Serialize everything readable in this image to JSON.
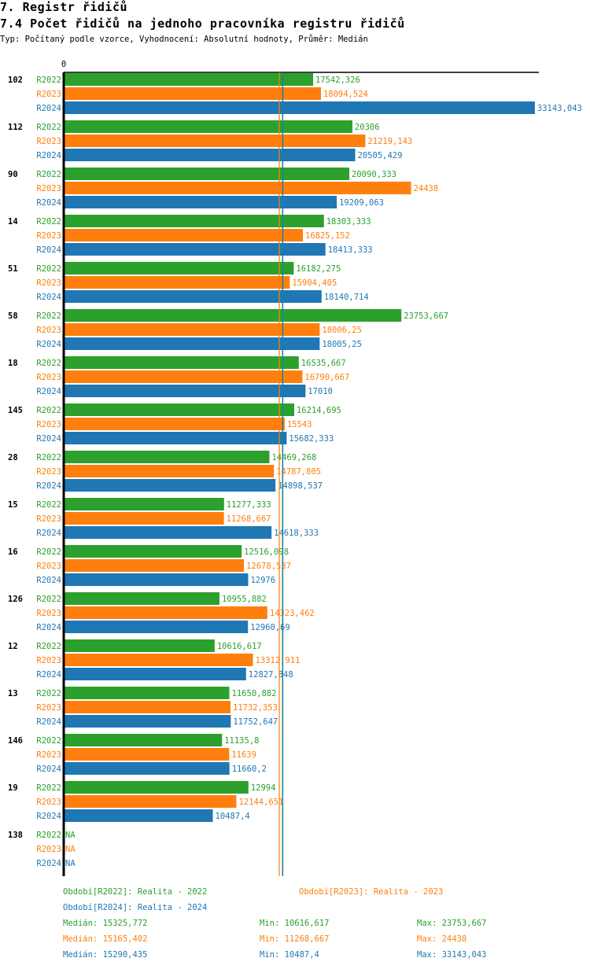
{
  "header": {
    "section": "7. Registr řidičů",
    "title": "7.4 Počet řidičů na jednoho pracovníka registru řidičů",
    "subtitle": "Typ: Počítaný podle vzorce, Vyhodnocení: Absolutní hodnoty, Průměr: Medián"
  },
  "chart_data": {
    "type": "bar",
    "orientation": "horizontal",
    "x_tick_labels": [
      "0"
    ],
    "colors": {
      "R2022": "#2ca02c",
      "R2023": "#ff7f0e",
      "R2024": "#1f77b4"
    },
    "categories": [
      "102",
      "112",
      "90",
      "14",
      "51",
      "58",
      "18",
      "145",
      "28",
      "15",
      "16",
      "126",
      "12",
      "13",
      "146",
      "19",
      "138"
    ],
    "series": [
      {
        "name": "R2022",
        "values": [
          17542.326,
          20306,
          20090.333,
          18303.333,
          16182.275,
          23753.667,
          16535.667,
          16214.695,
          14469.268,
          11277.333,
          12516.098,
          10955.882,
          10616.617,
          11650.882,
          11135.8,
          12994,
          null
        ],
        "labels": [
          "17542,326",
          "20306",
          "20090,333",
          "18303,333",
          "16182,275",
          "23753,667",
          "16535,667",
          "16214,695",
          "14469,268",
          "11277,333",
          "12516,098",
          "10955,882",
          "10616,617",
          "11650,882",
          "11135,8",
          "12994",
          "NA"
        ]
      },
      {
        "name": "R2023",
        "values": [
          18094.524,
          21219.143,
          24438,
          16825.152,
          15904.405,
          18006.25,
          16790.667,
          15543,
          14787.805,
          11268.667,
          12678.537,
          14323.462,
          13312.911,
          11732.353,
          11639,
          12144.651,
          null
        ],
        "labels": [
          "18094,524",
          "21219,143",
          "24438",
          "16825,152",
          "15904,405",
          "18006,25",
          "16790,667",
          "15543",
          "14787,805",
          "11268,667",
          "12678,537",
          "14323,462",
          "13312,911",
          "11732,353",
          "11639",
          "12144,651",
          "NA"
        ]
      },
      {
        "name": "R2024",
        "values": [
          33143.043,
          20505.429,
          19209.063,
          18413.333,
          18140.714,
          18005.25,
          17010,
          15682.333,
          14898.537,
          14618.333,
          12976,
          12960.69,
          12827.848,
          11752.647,
          11660.2,
          10487.4,
          null
        ],
        "labels": [
          "33143,043",
          "20505,429",
          "19209,063",
          "18413,333",
          "18140,714",
          "18005,25",
          "17010",
          "15682,333",
          "14898,537",
          "14618,333",
          "12976",
          "12960,69",
          "12827,848",
          "11752,647",
          "11660,2",
          "10487,4",
          "NA"
        ]
      }
    ],
    "medians": {
      "R2022": 15325.772,
      "R2023": 15165.402,
      "R2024": 15290.435
    }
  },
  "legend": {
    "periods": [
      "Období[R2022]: Realita - 2022",
      "Období[R2023]: Realita - 2023",
      "Období[R2024]: Realita - 2024"
    ],
    "stats": [
      {
        "median": "Medián: 15325,772",
        "min": "Min: 10616,617",
        "max": "Max: 23753,667"
      },
      {
        "median": "Medián: 15165,402",
        "min": "Min: 11268,667",
        "max": "Max: 24438"
      },
      {
        "median": "Medián: 15290,435",
        "min": "Min: 10487,4",
        "max": "Max: 33143,043"
      }
    ]
  }
}
